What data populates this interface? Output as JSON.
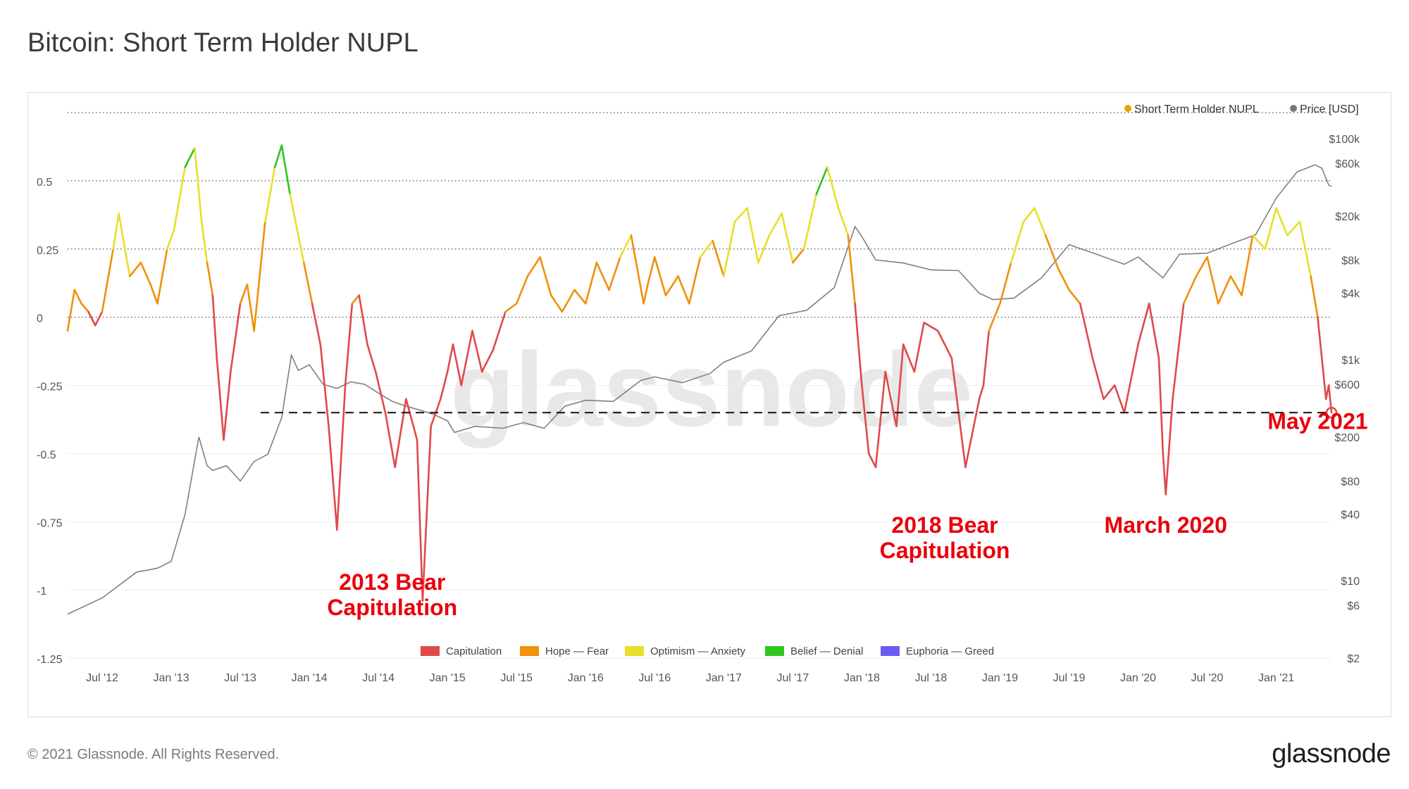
{
  "title": "Bitcoin: Short Term Holder NUPL",
  "footer": {
    "copyright": "© 2021 Glassnode. All Rights Reserved.",
    "brand": "glassnode"
  },
  "watermark": "glassnode",
  "colors": {
    "capitulation": "#e0494a",
    "hope_fear": "#f0900d",
    "optimism_anxiety": "#e8df2b",
    "belief_denial": "#2ec61c",
    "euphoria_greed": "#6a5cf0",
    "price": "#808080",
    "legend_nupl_dot": "#f0a000",
    "legend_price_dot": "#777777",
    "annotation": "#e8000b"
  },
  "chart_data": {
    "type": "line",
    "x_ticks": [
      "Jul '12",
      "Jan '13",
      "Jul '13",
      "Jan '14",
      "Jul '14",
      "Jan '15",
      "Jul '15",
      "Jan '16",
      "Jul '16",
      "Jan '17",
      "Jul '17",
      "Jan '18",
      "Jul '18",
      "Jan '19",
      "Jul '19",
      "Jan '20",
      "Jul '20",
      "Jan '21"
    ],
    "x_range": [
      2012.25,
      2021.4
    ],
    "y_left": {
      "ticks": [
        0.5,
        0.25,
        0,
        -0.25,
        -0.5,
        -0.75,
        -1,
        -1.25
      ],
      "tick_labels": [
        "0.5",
        "0.25",
        "0",
        "-0.25",
        "-0.5",
        "-0.75",
        "-1",
        "-1.25"
      ],
      "range": [
        -1.25,
        0.75
      ]
    },
    "y_right": {
      "scale": "log",
      "ticks": [
        100000,
        60000,
        20000,
        8000,
        4000,
        1000,
        600,
        200,
        80,
        40,
        10,
        6,
        2
      ],
      "tick_labels": [
        "$100k",
        "$60k",
        "$20k",
        "$8k",
        "$4k",
        "$1k",
        "$600",
        "$200",
        "$80",
        "$40",
        "$10",
        "$6",
        "$2"
      ]
    },
    "series_legend": [
      {
        "name": "Short Term Holder NUPL",
        "dot_color": "#f0a000"
      },
      {
        "name": "Price [USD]",
        "dot_color": "#777777"
      }
    ],
    "zone_legend": [
      {
        "name": "Capitulation",
        "color": "#e0494a"
      },
      {
        "name": "Hope — Fear",
        "color": "#f0900d"
      },
      {
        "name": "Optimism — Anxiety",
        "color": "#e8df2b"
      },
      {
        "name": "Belief — Denial",
        "color": "#2ec61c"
      },
      {
        "name": "Euphoria — Greed",
        "color": "#6a5cf0"
      }
    ],
    "zone_thresholds": [
      0,
      0.25,
      0.5,
      0.75
    ],
    "reference_line": {
      "y": -0.35,
      "style": "dashed"
    },
    "nupl": {
      "x": [
        2012.25,
        2012.3,
        2012.35,
        2012.4,
        2012.45,
        2012.5,
        2012.58,
        2012.62,
        2012.7,
        2012.78,
        2012.85,
        2012.9,
        2012.97,
        2013.02,
        2013.1,
        2013.17,
        2013.22,
        2013.26,
        2013.3,
        2013.33,
        2013.38,
        2013.43,
        2013.5,
        2013.55,
        2013.6,
        2013.68,
        2013.75,
        2013.8,
        2013.86,
        2013.92,
        2013.96,
        2014.02,
        2014.08,
        2014.14,
        2014.2,
        2014.26,
        2014.31,
        2014.36,
        2014.42,
        2014.48,
        2014.55,
        2014.62,
        2014.7,
        2014.78,
        2014.82,
        2014.88,
        2014.95,
        2015.0,
        2015.04,
        2015.1,
        2015.18,
        2015.25,
        2015.33,
        2015.42,
        2015.5,
        2015.58,
        2015.67,
        2015.75,
        2015.83,
        2015.92,
        2016.0,
        2016.08,
        2016.17,
        2016.25,
        2016.33,
        2016.42,
        2016.45,
        2016.5,
        2016.58,
        2016.67,
        2016.75,
        2016.83,
        2016.92,
        2017.0,
        2017.08,
        2017.17,
        2017.25,
        2017.33,
        2017.42,
        2017.5,
        2017.58,
        2017.67,
        2017.75,
        2017.83,
        2017.9,
        2017.95,
        2018.0,
        2018.05,
        2018.1,
        2018.17,
        2018.25,
        2018.3,
        2018.38,
        2018.45,
        2018.55,
        2018.65,
        2018.75,
        2018.85,
        2018.88,
        2018.92,
        2019.0,
        2019.08,
        2019.17,
        2019.25,
        2019.33,
        2019.42,
        2019.5,
        2019.58,
        2019.67,
        2019.75,
        2019.83,
        2019.9,
        2020.0,
        2020.08,
        2020.15,
        2020.18,
        2020.2,
        2020.25,
        2020.33,
        2020.42,
        2020.5,
        2020.58,
        2020.67,
        2020.75,
        2020.83,
        2020.92,
        2021.0,
        2021.08,
        2021.17,
        2021.25,
        2021.3,
        2021.33,
        2021.36,
        2021.38,
        2021.4
      ],
      "y": [
        -0.05,
        0.1,
        0.05,
        0.02,
        -0.03,
        0.02,
        0.25,
        0.38,
        0.15,
        0.2,
        0.12,
        0.05,
        0.25,
        0.32,
        0.55,
        0.62,
        0.35,
        0.2,
        0.08,
        -0.15,
        -0.45,
        -0.2,
        0.05,
        0.12,
        -0.05,
        0.35,
        0.55,
        0.63,
        0.45,
        0.3,
        0.2,
        0.05,
        -0.1,
        -0.4,
        -0.78,
        -0.25,
        0.05,
        0.08,
        -0.1,
        -0.2,
        -0.35,
        -0.55,
        -0.3,
        -0.45,
        -1.04,
        -0.4,
        -0.3,
        -0.2,
        -0.1,
        -0.25,
        -0.05,
        -0.2,
        -0.12,
        0.02,
        0.05,
        0.15,
        0.22,
        0.08,
        0.02,
        0.1,
        0.05,
        0.2,
        0.1,
        0.22,
        0.3,
        0.05,
        0.12,
        0.22,
        0.08,
        0.15,
        0.05,
        0.22,
        0.28,
        0.15,
        0.35,
        0.4,
        0.2,
        0.3,
        0.38,
        0.2,
        0.25,
        0.45,
        0.55,
        0.4,
        0.3,
        0.05,
        -0.25,
        -0.5,
        -0.55,
        -0.2,
        -0.4,
        -0.1,
        -0.2,
        -0.02,
        -0.05,
        -0.15,
        -0.55,
        -0.3,
        -0.25,
        -0.05,
        0.05,
        0.2,
        0.35,
        0.4,
        0.3,
        0.18,
        0.1,
        0.05,
        -0.15,
        -0.3,
        -0.25,
        -0.35,
        -0.1,
        0.05,
        -0.15,
        -0.5,
        -0.65,
        -0.3,
        0.05,
        0.15,
        0.22,
        0.05,
        0.15,
        0.08,
        0.3,
        0.25,
        0.4,
        0.3,
        0.35,
        0.15,
        0.0,
        -0.15,
        -0.3,
        -0.25,
        -0.35
      ]
    },
    "price": {
      "x": [
        2012.25,
        2012.5,
        2012.75,
        2012.9,
        2013.0,
        2013.1,
        2013.2,
        2013.26,
        2013.3,
        2013.4,
        2013.5,
        2013.6,
        2013.7,
        2013.8,
        2013.87,
        2013.92,
        2014.0,
        2014.1,
        2014.2,
        2014.3,
        2014.4,
        2014.5,
        2014.6,
        2014.7,
        2014.8,
        2014.9,
        2015.0,
        2015.05,
        2015.2,
        2015.4,
        2015.55,
        2015.7,
        2015.85,
        2016.0,
        2016.2,
        2016.4,
        2016.5,
        2016.7,
        2016.9,
        2017.0,
        2017.2,
        2017.4,
        2017.6,
        2017.8,
        2017.95,
        2018.0,
        2018.1,
        2018.3,
        2018.5,
        2018.7,
        2018.85,
        2018.95,
        2019.1,
        2019.3,
        2019.5,
        2019.7,
        2019.9,
        2020.0,
        2020.18,
        2020.3,
        2020.5,
        2020.7,
        2020.85,
        2021.0,
        2021.15,
        2021.28,
        2021.33,
        2021.38,
        2021.4
      ],
      "y": [
        5,
        7,
        12,
        13,
        15,
        40,
        200,
        110,
        100,
        110,
        80,
        120,
        140,
        300,
        1100,
        800,
        900,
        600,
        550,
        630,
        600,
        500,
        420,
        380,
        350,
        320,
        280,
        220,
        250,
        240,
        270,
        240,
        380,
        430,
        420,
        650,
        700,
        620,
        750,
        950,
        1200,
        2500,
        2800,
        4500,
        16000,
        13000,
        8000,
        7500,
        6500,
        6400,
        4000,
        3500,
        3600,
        5500,
        11000,
        9000,
        7300,
        8500,
        5500,
        9000,
        9200,
        11500,
        13500,
        29000,
        50000,
        58000,
        54000,
        38000,
        37000
      ]
    },
    "annotations": [
      {
        "text": "2013 Bear",
        "text2": "Capitulation",
        "x": 2014.6,
        "y": -1.0
      },
      {
        "text": "2018 Bear",
        "text2": "Capitulation",
        "x": 2018.6,
        "y": -0.79
      },
      {
        "text": "March 2020",
        "text2": "",
        "x": 2020.2,
        "y": -0.79
      },
      {
        "text": "May 2021",
        "text2": "",
        "x": 2021.3,
        "y": -0.41
      }
    ],
    "marker": {
      "x": 2021.4,
      "y": -0.35
    }
  }
}
